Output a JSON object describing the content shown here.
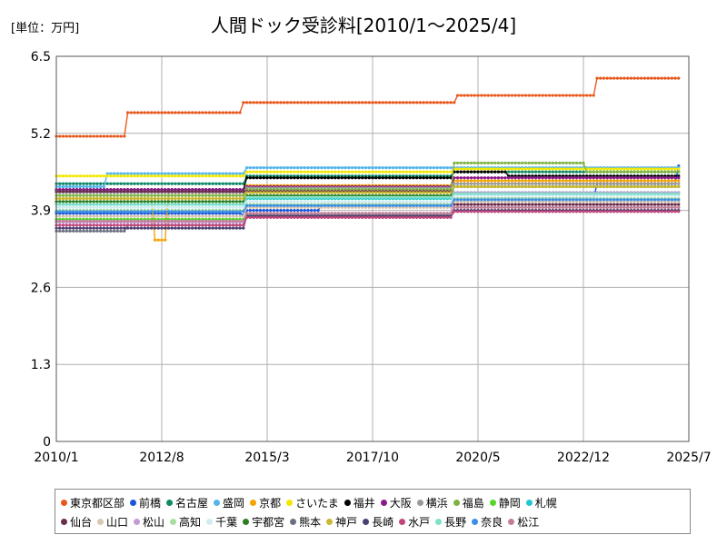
{
  "chart_data": {
    "type": "line",
    "title": "人間ドック受診料[2010/1〜2025/4]",
    "ylabel": "[単位：万円]",
    "xlabel": "",
    "ylim": [
      0,
      6.5
    ],
    "xlim": [
      "2010-01",
      "2025-07"
    ],
    "yticks": [
      "6.5",
      "5.2",
      "3.9",
      "2.6",
      "1.3",
      "0"
    ],
    "xticks": [
      "2010/1",
      "2012/8",
      "2015/3",
      "2017/10",
      "2020/5",
      "2022/12",
      "2025/7"
    ],
    "grid": true,
    "legend_position": "bottom",
    "series": [
      {
        "name": "東京都区部",
        "color": "#e8581c",
        "points": [
          [
            "2010-01",
            5.15
          ],
          [
            "2011-09",
            5.15
          ],
          [
            "2011-10",
            5.55
          ],
          [
            "2014-07",
            5.55
          ],
          [
            "2014-08",
            5.72
          ],
          [
            "2019-10",
            5.72
          ],
          [
            "2019-11",
            5.84
          ],
          [
            "2023-03",
            5.84
          ],
          [
            "2023-04",
            6.13
          ],
          [
            "2025-04",
            6.13
          ]
        ]
      },
      {
        "name": "前橋",
        "color": "#1a56db",
        "points": [
          [
            "2010-01",
            3.85
          ],
          [
            "2014-08",
            3.82
          ],
          [
            "2014-09",
            3.9
          ],
          [
            "2016-06",
            3.9
          ],
          [
            "2016-07",
            4.0
          ],
          [
            "2019-09",
            4.0
          ],
          [
            "2019-10",
            4.1
          ],
          [
            "2023-03",
            4.1
          ],
          [
            "2023-04",
            4.35
          ],
          [
            "2025-03",
            4.35
          ],
          [
            "2025-04",
            4.65
          ]
        ]
      },
      {
        "name": "名古屋",
        "color": "#0e8a66",
        "points": [
          [
            "2010-01",
            4.35
          ],
          [
            "2014-08",
            4.35
          ],
          [
            "2014-09",
            4.48
          ],
          [
            "2019-09",
            4.48
          ],
          [
            "2019-10",
            4.55
          ],
          [
            "2025-04",
            4.55
          ]
        ]
      },
      {
        "name": "盛岡",
        "color": "#55b5ea",
        "points": [
          [
            "2010-01",
            4.3
          ],
          [
            "2011-03",
            4.3
          ],
          [
            "2011-04",
            4.52
          ],
          [
            "2014-08",
            4.52
          ],
          [
            "2014-09",
            4.62
          ],
          [
            "2019-09",
            4.62
          ],
          [
            "2019-10",
            4.62
          ],
          [
            "2025-04",
            4.62
          ]
        ]
      },
      {
        "name": "京都",
        "color": "#f5a300",
        "points": [
          [
            "2010-01",
            4.1
          ],
          [
            "2012-05",
            4.1
          ],
          [
            "2012-06",
            3.4
          ],
          [
            "2012-09",
            3.4
          ],
          [
            "2012-10",
            4.2
          ],
          [
            "2014-08",
            4.2
          ],
          [
            "2014-09",
            4.32
          ],
          [
            "2019-09",
            4.32
          ],
          [
            "2019-10",
            4.4
          ],
          [
            "2025-04",
            4.4
          ]
        ]
      },
      {
        "name": "さいたま",
        "color": "#f2e800",
        "points": [
          [
            "2010-01",
            4.48
          ],
          [
            "2014-08",
            4.48
          ],
          [
            "2014-09",
            4.55
          ],
          [
            "2019-09",
            4.55
          ],
          [
            "2019-10",
            4.6
          ],
          [
            "2025-04",
            4.6
          ]
        ]
      },
      {
        "name": "福井",
        "color": "#000000",
        "points": [
          [
            "2010-01",
            4.25
          ],
          [
            "2014-08",
            4.25
          ],
          [
            "2014-09",
            4.45
          ],
          [
            "2019-09",
            4.45
          ],
          [
            "2019-10",
            4.55
          ],
          [
            "2021-01",
            4.55
          ],
          [
            "2021-02",
            4.48
          ],
          [
            "2025-04",
            4.48
          ]
        ]
      },
      {
        "name": "大阪",
        "color": "#8a1a8a",
        "points": [
          [
            "2010-01",
            4.25
          ],
          [
            "2014-08",
            4.25
          ],
          [
            "2014-09",
            4.3
          ],
          [
            "2019-09",
            4.3
          ],
          [
            "2019-10",
            4.45
          ],
          [
            "2025-04",
            4.45
          ]
        ]
      },
      {
        "name": "横浜",
        "color": "#999999",
        "points": [
          [
            "2010-01",
            4.2
          ],
          [
            "2014-08",
            4.2
          ],
          [
            "2014-09",
            4.28
          ],
          [
            "2019-09",
            4.28
          ],
          [
            "2019-10",
            4.35
          ],
          [
            "2025-04",
            4.35
          ]
        ]
      },
      {
        "name": "福島",
        "color": "#7cb342",
        "points": [
          [
            "2010-01",
            4.15
          ],
          [
            "2014-08",
            4.15
          ],
          [
            "2014-09",
            4.25
          ],
          [
            "2019-09",
            4.25
          ],
          [
            "2019-10",
            4.7
          ],
          [
            "2022-12",
            4.7
          ],
          [
            "2023-01",
            4.55
          ],
          [
            "2025-04",
            4.55
          ]
        ]
      },
      {
        "name": "静岡",
        "color": "#55d62a",
        "points": [
          [
            "2010-01",
            3.75
          ],
          [
            "2014-08",
            3.75
          ],
          [
            "2014-09",
            4.1
          ],
          [
            "2019-09",
            4.1
          ],
          [
            "2019-10",
            4.2
          ],
          [
            "2025-04",
            4.2
          ]
        ]
      },
      {
        "name": "札幌",
        "color": "#1ec8d6",
        "points": [
          [
            "2010-01",
            4.0
          ],
          [
            "2014-08",
            4.0
          ],
          [
            "2014-09",
            4.1
          ],
          [
            "2019-09",
            4.1
          ],
          [
            "2019-10",
            4.2
          ],
          [
            "2025-04",
            4.2
          ]
        ]
      },
      {
        "name": "仙台",
        "color": "#6b2d4e",
        "points": [
          [
            "2010-01",
            4.22
          ],
          [
            "2014-08",
            4.22
          ],
          [
            "2014-09",
            4.22
          ],
          [
            "2019-09",
            4.22
          ],
          [
            "2019-10",
            4.0
          ],
          [
            "2025-04",
            4.0
          ]
        ]
      },
      {
        "name": "山口",
        "color": "#d8c8b0",
        "points": [
          [
            "2010-01",
            3.8
          ],
          [
            "2014-08",
            3.8
          ],
          [
            "2014-09",
            3.95
          ],
          [
            "2019-09",
            3.95
          ],
          [
            "2019-10",
            4.05
          ],
          [
            "2025-04",
            4.05
          ]
        ]
      },
      {
        "name": "松山",
        "color": "#c69ad8",
        "points": [
          [
            "2010-01",
            3.7
          ],
          [
            "2014-08",
            3.7
          ],
          [
            "2014-09",
            3.85
          ],
          [
            "2019-09",
            3.85
          ],
          [
            "2019-10",
            4.2
          ],
          [
            "2025-04",
            4.2
          ]
        ]
      },
      {
        "name": "高知",
        "color": "#a8dfa0",
        "points": [
          [
            "2010-01",
            3.9
          ],
          [
            "2014-08",
            3.9
          ],
          [
            "2014-09",
            4.0
          ],
          [
            "2019-09",
            4.0
          ],
          [
            "2019-10",
            4.1
          ],
          [
            "2025-04",
            4.1
          ]
        ]
      },
      {
        "name": "千葉",
        "color": "#d0ecf2",
        "points": [
          [
            "2010-01",
            3.95
          ],
          [
            "2014-08",
            3.95
          ],
          [
            "2014-09",
            4.05
          ],
          [
            "2019-09",
            4.05
          ],
          [
            "2019-10",
            4.15
          ],
          [
            "2025-04",
            4.15
          ]
        ]
      },
      {
        "name": "宇都宮",
        "color": "#2e7d1e",
        "points": [
          [
            "2010-01",
            4.05
          ],
          [
            "2014-08",
            4.05
          ],
          [
            "2014-09",
            4.15
          ],
          [
            "2019-09",
            4.15
          ],
          [
            "2019-10",
            4.3
          ],
          [
            "2025-04",
            4.3
          ]
        ]
      },
      {
        "name": "熊本",
        "color": "#6b7080",
        "points": [
          [
            "2010-01",
            3.55
          ],
          [
            "2011-09",
            3.55
          ],
          [
            "2011-10",
            3.65
          ],
          [
            "2014-08",
            3.65
          ],
          [
            "2014-09",
            3.82
          ],
          [
            "2019-09",
            3.82
          ],
          [
            "2019-10",
            3.95
          ],
          [
            "2025-04",
            3.95
          ]
        ]
      },
      {
        "name": "神戸",
        "color": "#c8b830",
        "points": [
          [
            "2010-01",
            4.1
          ],
          [
            "2014-08",
            4.1
          ],
          [
            "2014-09",
            4.2
          ],
          [
            "2019-09",
            4.2
          ],
          [
            "2019-10",
            4.3
          ],
          [
            "2025-04",
            4.3
          ]
        ]
      },
      {
        "name": "長崎",
        "color": "#4a3f70",
        "points": [
          [
            "2010-01",
            3.6
          ],
          [
            "2014-08",
            3.6
          ],
          [
            "2014-09",
            3.8
          ],
          [
            "2019-09",
            3.8
          ],
          [
            "2019-10",
            3.9
          ],
          [
            "2025-04",
            3.9
          ]
        ]
      },
      {
        "name": "水戸",
        "color": "#c0457a",
        "points": [
          [
            "2010-01",
            3.65
          ],
          [
            "2014-08",
            3.65
          ],
          [
            "2014-09",
            3.78
          ],
          [
            "2019-09",
            3.78
          ],
          [
            "2019-10",
            3.88
          ],
          [
            "2025-04",
            3.88
          ]
        ]
      },
      {
        "name": "長野",
        "color": "#7fe0c8",
        "points": [
          [
            "2010-01",
            4.0
          ],
          [
            "2014-08",
            4.0
          ],
          [
            "2014-09",
            4.12
          ],
          [
            "2019-09",
            4.12
          ],
          [
            "2019-10",
            4.18
          ],
          [
            "2025-04",
            4.18
          ]
        ]
      },
      {
        "name": "奈良",
        "color": "#3c8ee6",
        "points": [
          [
            "2010-01",
            3.88
          ],
          [
            "2014-08",
            3.88
          ],
          [
            "2014-09",
            3.98
          ],
          [
            "2019-09",
            3.98
          ],
          [
            "2019-10",
            4.08
          ],
          [
            "2025-04",
            4.08
          ]
        ]
      },
      {
        "name": "松江",
        "color": "#c08098",
        "points": [
          [
            "2010-01",
            3.72
          ],
          [
            "2014-08",
            3.72
          ],
          [
            "2014-09",
            3.85
          ],
          [
            "2019-09",
            3.85
          ],
          [
            "2019-10",
            3.95
          ],
          [
            "2025-04",
            3.95
          ]
        ]
      }
    ]
  }
}
